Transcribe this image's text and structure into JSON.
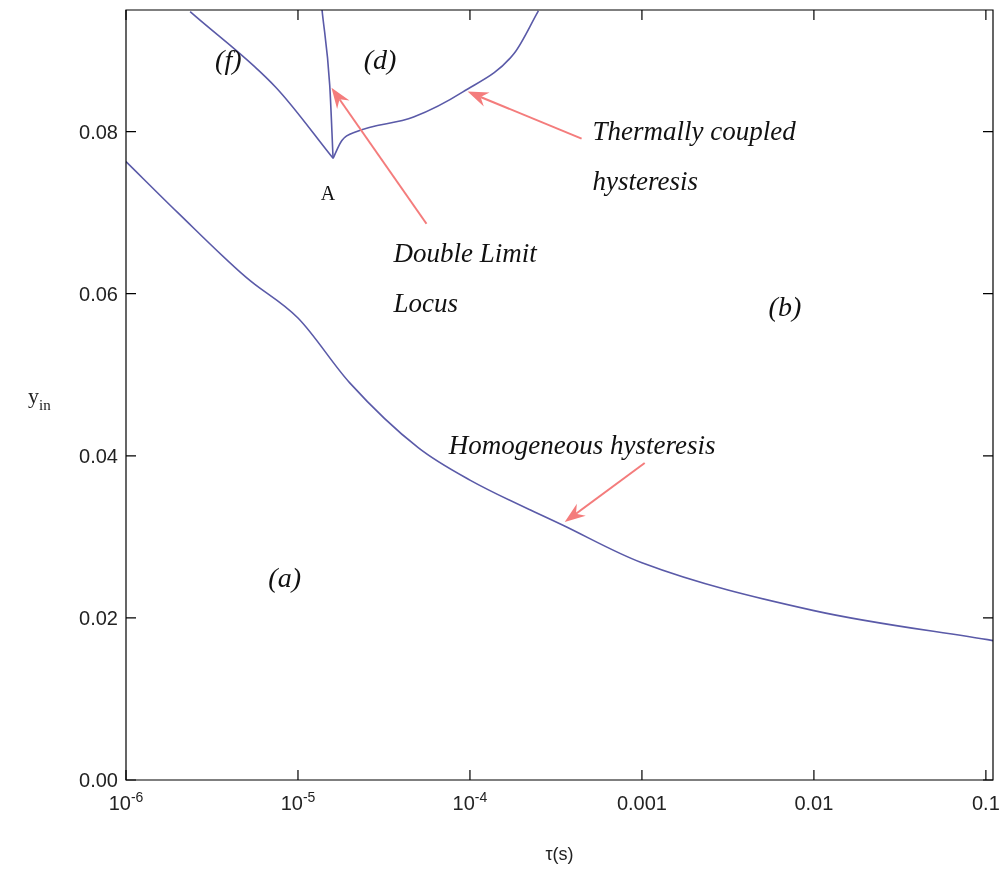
{
  "chart_data": {
    "type": "line",
    "xlabel": "τ(s)",
    "ylabel": "y$_{in}$",
    "log": "x",
    "xlim": [
      1e-06,
      0.11
    ],
    "ylim": [
      0,
      0.095
    ],
    "xticks": [
      {
        "value": 1e-06,
        "label": "10$^{-6}$"
      },
      {
        "value": 1e-05,
        "label": "10$^{-5}$"
      },
      {
        "value": 0.0001,
        "label": "10$^{-4}$"
      },
      0.001,
      0.01,
      0.1
    ],
    "yticks": [
      {
        "value": 0,
        "label": "0.00"
      },
      0.02,
      0.04,
      0.06,
      0.08
    ],
    "grid": false,
    "legend": false,
    "marker": "none",
    "line_style": "solid",
    "series": [
      {
        "color": "#5a5aa8",
        "x": [
          1e-06,
          2e-06,
          5e-06,
          1e-05,
          2e-05,
          5e-05,
          0.0001,
          0.00035,
          0.001,
          0.01,
          0.11
        ],
        "values": [
          0.0763,
          0.07,
          0.062,
          0.057,
          0.049,
          0.041,
          0.037,
          0.0314,
          0.0268,
          0.0209,
          0.0172
        ]
      },
      {
        "color": "#5a5aa8",
        "x": [
          1.6e-05,
          1.53e-05,
          1.38e-05
        ],
        "values": [
          0.0767,
          0.0857,
          0.095
        ]
      },
      {
        "color": "#5a5aa8",
        "x": [
          1.6e-05,
          7.4e-06,
          2.36e-06
        ],
        "values": [
          0.0767,
          0.0855,
          0.0948
        ]
      },
      {
        "color": "#5a5aa8",
        "x": [
          1.6e-05,
          1.8e-05,
          2.2e-05,
          4.7e-05,
          9.1e-05,
          0.00018,
          0.00025
        ],
        "values": [
          0.0767,
          0.0789,
          0.08,
          0.0818,
          0.0849,
          0.0896,
          0.0949
        ]
      }
    ],
    "annotations": [
      "(f)",
      "(d)",
      "(b)",
      "(a)",
      {
        "text": "A",
        "x": 1.6e-05,
        "y": 0.0767
      },
      "Double Limit Locus",
      "Thermally coupled hysteresis",
      "Homogeneous hysteresis"
    ]
  }
}
